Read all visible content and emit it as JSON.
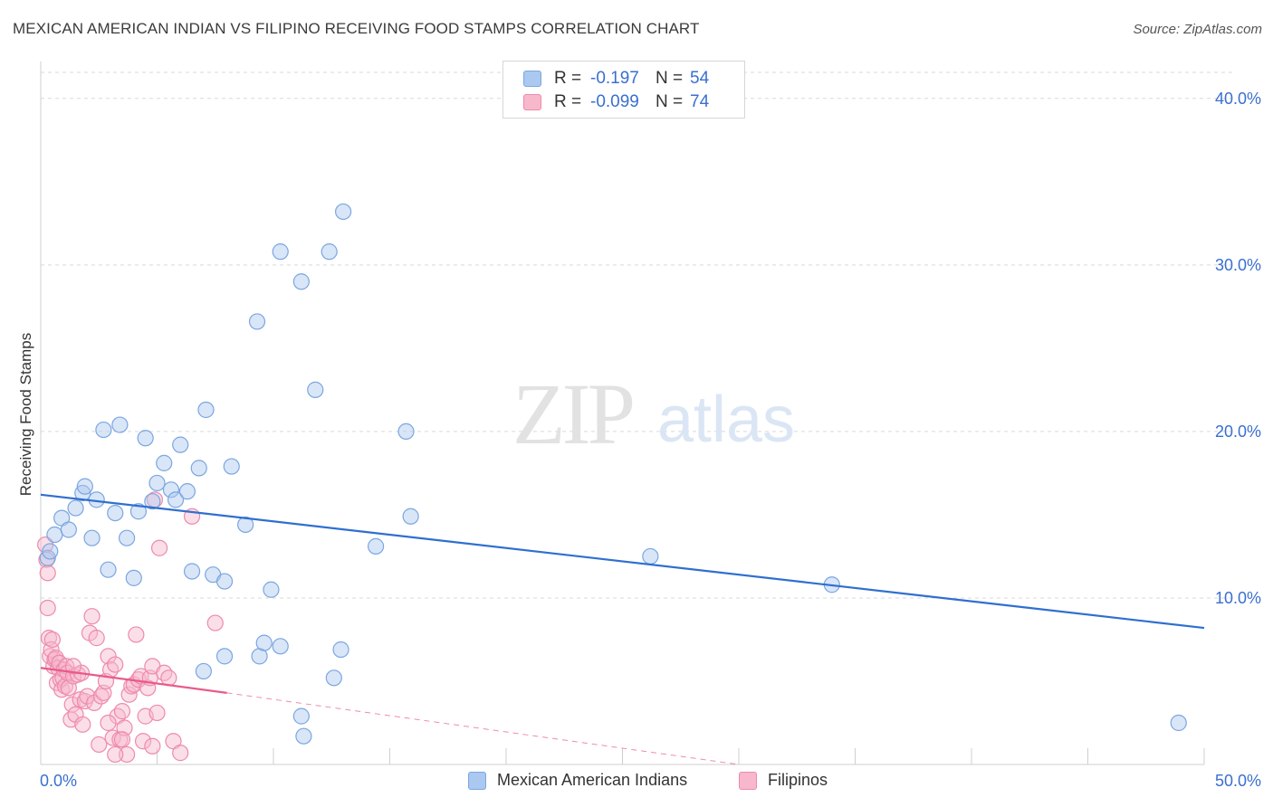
{
  "title": "MEXICAN AMERICAN INDIAN VS FILIPINO RECEIVING FOOD STAMPS CORRELATION CHART",
  "source": "Source: ZipAtlas.com",
  "watermark": {
    "zip": "ZIP",
    "atlas": "atlas"
  },
  "legend": {
    "rows": [
      {
        "r_label": "R =",
        "r_value": "-0.197",
        "n_label": "N =",
        "n_value": "54"
      },
      {
        "r_label": "R =",
        "r_value": "-0.099",
        "n_label": "N =",
        "n_value": "74"
      }
    ]
  },
  "bottom_legend": {
    "series1": "Mexican American Indians",
    "series2": "Filipinos"
  },
  "colors": {
    "blue_fill": "#aac8f0",
    "blue_stroke": "#7aa6e0",
    "blue_line": "#2f6fd0",
    "pink_fill": "#f7b8cc",
    "pink_stroke": "#ee8aaa",
    "pink_line": "#e85a8a",
    "axis_text": "#3a6fd0",
    "grid": "#d9d9d9"
  },
  "chart_data": {
    "type": "scatter",
    "title": "MEXICAN AMERICAN INDIAN VS FILIPINO RECEIVING FOOD STAMPS CORRELATION CHART",
    "xlabel": "",
    "ylabel": "Receiving Food Stamps",
    "xlim": [
      0,
      50
    ],
    "ylim": [
      0,
      42
    ],
    "x_tick_labels": [
      "0.0%",
      "50.0%"
    ],
    "y_ticks": [
      10,
      20,
      30,
      40
    ],
    "y_tick_labels": [
      "10.0%",
      "20.0%",
      "30.0%",
      "40.0%"
    ],
    "grid": true,
    "series": [
      {
        "name": "Mexican American Indians",
        "color": "#aac8f0",
        "points": [
          [
            0.3,
            12.4
          ],
          [
            0.4,
            12.8
          ],
          [
            0.6,
            13.8
          ],
          [
            0.9,
            14.8
          ],
          [
            1.2,
            14.1
          ],
          [
            1.5,
            15.4
          ],
          [
            1.8,
            16.3
          ],
          [
            1.9,
            16.7
          ],
          [
            2.2,
            13.6
          ],
          [
            2.4,
            15.9
          ],
          [
            2.7,
            20.1
          ],
          [
            2.9,
            11.7
          ],
          [
            3.2,
            15.1
          ],
          [
            3.4,
            20.4
          ],
          [
            3.7,
            13.6
          ],
          [
            4.0,
            11.2
          ],
          [
            4.2,
            15.2
          ],
          [
            4.5,
            19.6
          ],
          [
            4.8,
            15.8
          ],
          [
            5.0,
            16.9
          ],
          [
            5.3,
            18.1
          ],
          [
            5.6,
            16.5
          ],
          [
            5.8,
            15.9
          ],
          [
            6.0,
            19.2
          ],
          [
            6.3,
            16.4
          ],
          [
            6.5,
            11.6
          ],
          [
            6.8,
            17.8
          ],
          [
            7.1,
            21.3
          ],
          [
            7.4,
            11.4
          ],
          [
            7.9,
            11.0
          ],
          [
            8.2,
            17.9
          ],
          [
            8.8,
            14.4
          ],
          [
            9.3,
            26.6
          ],
          [
            9.9,
            10.5
          ],
          [
            10.3,
            30.8
          ],
          [
            11.2,
            29.0
          ],
          [
            11.8,
            22.5
          ],
          [
            12.4,
            30.8
          ],
          [
            13.0,
            33.2
          ],
          [
            14.4,
            13.1
          ],
          [
            15.7,
            20.0
          ],
          [
            15.9,
            14.9
          ],
          [
            26.2,
            12.5
          ],
          [
            34.0,
            10.8
          ],
          [
            48.9,
            2.5
          ],
          [
            7.0,
            5.6
          ],
          [
            7.9,
            6.5
          ],
          [
            9.4,
            6.5
          ],
          [
            9.6,
            7.3
          ],
          [
            10.3,
            7.1
          ],
          [
            11.3,
            1.7
          ],
          [
            11.2,
            2.9
          ],
          [
            12.6,
            5.2
          ],
          [
            12.9,
            6.9
          ]
        ]
      },
      {
        "name": "Filipinos",
        "color": "#f7b8cc",
        "points": [
          [
            0.2,
            13.2
          ],
          [
            0.25,
            12.3
          ],
          [
            0.3,
            11.5
          ],
          [
            0.3,
            9.4
          ],
          [
            0.35,
            7.6
          ],
          [
            0.4,
            6.5
          ],
          [
            0.45,
            6.9
          ],
          [
            0.5,
            7.5
          ],
          [
            0.55,
            5.9
          ],
          [
            0.6,
            6.3
          ],
          [
            0.65,
            6.4
          ],
          [
            0.7,
            4.9
          ],
          [
            0.75,
            5.8
          ],
          [
            0.8,
            6.1
          ],
          [
            0.85,
            5.1
          ],
          [
            0.9,
            4.5
          ],
          [
            0.95,
            5.2
          ],
          [
            1.0,
            5.7
          ],
          [
            1.05,
            4.7
          ],
          [
            1.1,
            5.9
          ],
          [
            1.15,
            5.5
          ],
          [
            1.2,
            4.6
          ],
          [
            1.3,
            2.7
          ],
          [
            1.35,
            3.6
          ],
          [
            1.4,
            5.3
          ],
          [
            1.5,
            3.0
          ],
          [
            1.6,
            5.4
          ],
          [
            1.7,
            3.9
          ],
          [
            1.75,
            5.5
          ],
          [
            1.8,
            2.4
          ],
          [
            1.9,
            3.8
          ],
          [
            2.0,
            4.1
          ],
          [
            2.1,
            7.9
          ],
          [
            2.2,
            8.9
          ],
          [
            2.3,
            3.7
          ],
          [
            2.4,
            7.6
          ],
          [
            2.5,
            1.2
          ],
          [
            2.6,
            4.1
          ],
          [
            2.7,
            4.3
          ],
          [
            2.8,
            5.0
          ],
          [
            2.9,
            6.5
          ],
          [
            3.0,
            5.7
          ],
          [
            3.1,
            1.6
          ],
          [
            3.2,
            6.0
          ],
          [
            3.3,
            2.9
          ],
          [
            3.4,
            1.5
          ],
          [
            3.5,
            3.2
          ],
          [
            3.6,
            2.2
          ],
          [
            3.7,
            0.6
          ],
          [
            3.8,
            4.2
          ],
          [
            3.9,
            4.7
          ],
          [
            4.0,
            4.8
          ],
          [
            4.1,
            7.8
          ],
          [
            4.2,
            5.1
          ],
          [
            4.3,
            5.3
          ],
          [
            4.4,
            1.4
          ],
          [
            4.5,
            2.9
          ],
          [
            4.6,
            4.6
          ],
          [
            4.7,
            5.2
          ],
          [
            4.8,
            5.9
          ],
          [
            4.9,
            15.9
          ],
          [
            5.0,
            3.1
          ],
          [
            5.1,
            13.0
          ],
          [
            5.3,
            5.5
          ],
          [
            5.5,
            5.2
          ],
          [
            5.7,
            1.4
          ],
          [
            6.0,
            0.7
          ],
          [
            6.5,
            14.9
          ],
          [
            7.5,
            8.5
          ],
          [
            3.2,
            0.6
          ],
          [
            3.5,
            1.5
          ],
          [
            4.8,
            1.1
          ],
          [
            2.9,
            2.5
          ],
          [
            1.4,
            5.9
          ]
        ]
      }
    ],
    "trendlines": [
      {
        "series": "Mexican American Indians",
        "x": [
          0,
          50
        ],
        "y": [
          16.2,
          8.2
        ],
        "style": "solid"
      },
      {
        "series": "Filipinos",
        "x": [
          0,
          8
        ],
        "y": [
          5.8,
          4.3
        ],
        "style": "solid"
      },
      {
        "series": "Filipinos",
        "x": [
          8,
          30
        ],
        "y": [
          4.3,
          0.0
        ],
        "style": "dashed"
      }
    ]
  }
}
